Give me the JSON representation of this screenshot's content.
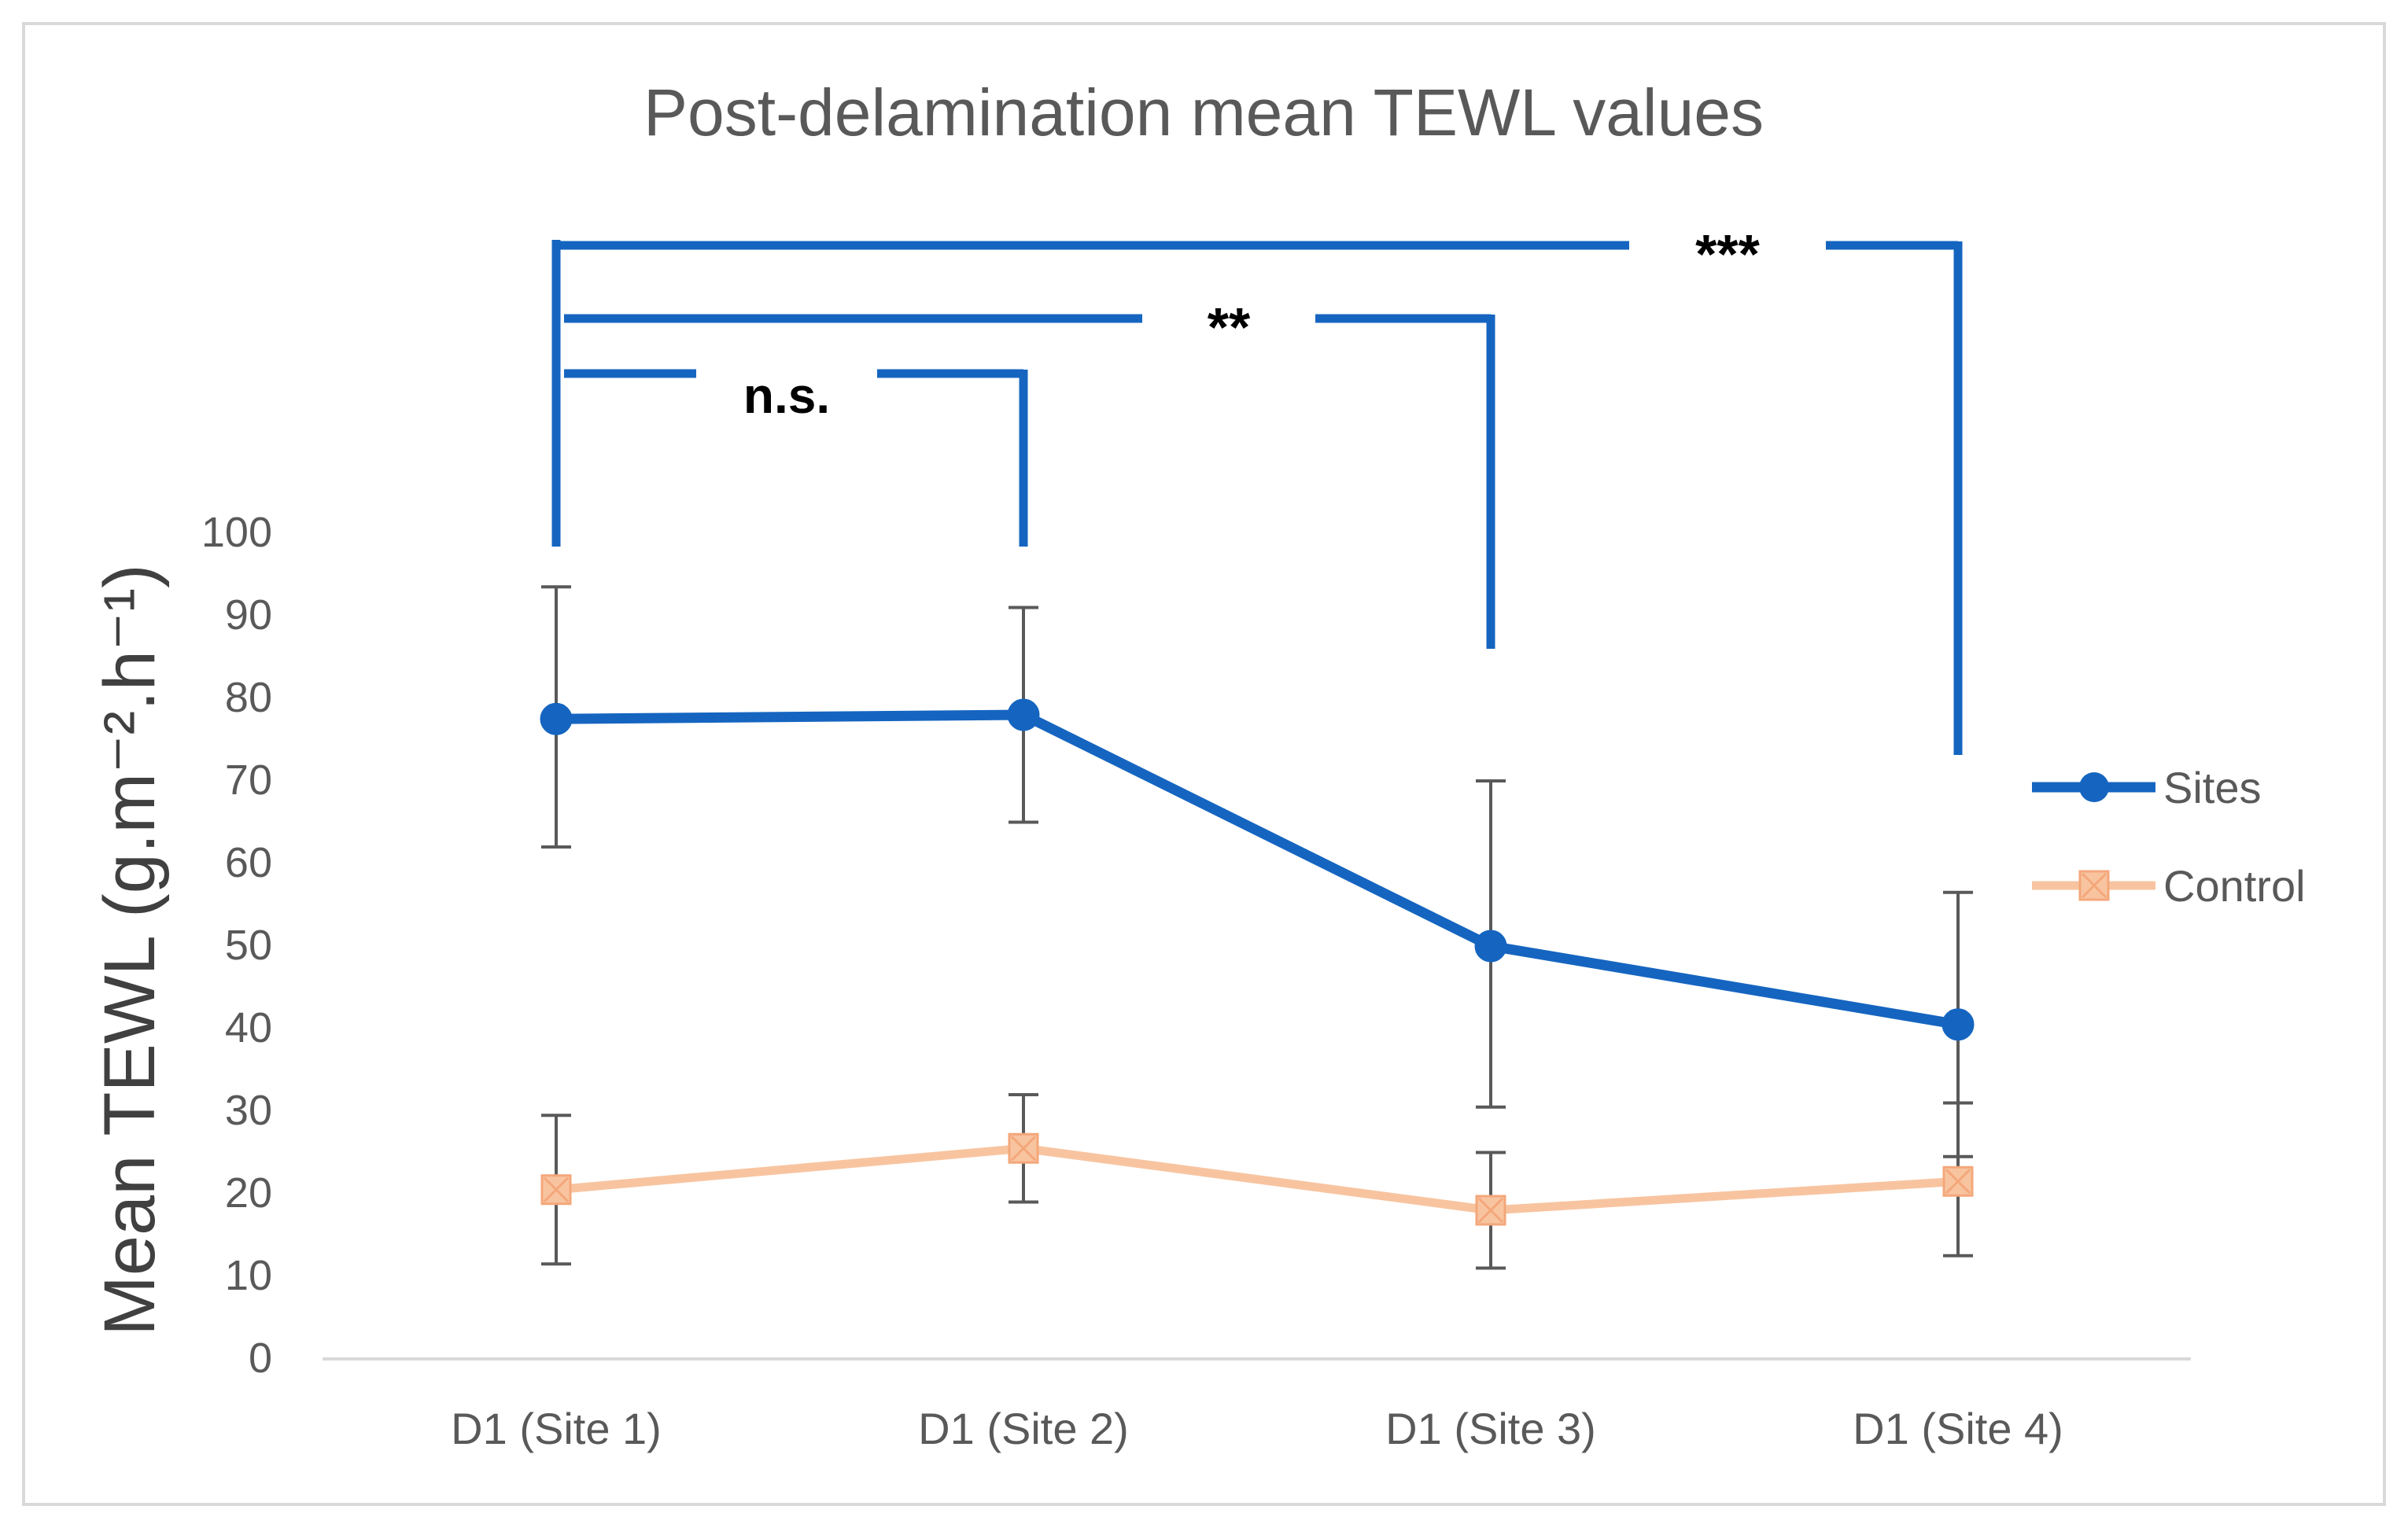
{
  "chart_data": {
    "type": "line",
    "title": "Post-delamination mean TEWL values",
    "xlabel": "",
    "ylabel": "Mean TEWL (g.m⁻².h⁻¹)",
    "ylim": [
      0,
      100
    ],
    "yticks": [
      0,
      10,
      20,
      30,
      40,
      50,
      60,
      70,
      80,
      90,
      100
    ],
    "categories": [
      "D1 (Site 1)",
      "D1 (Site 2)",
      "D1 (Site 3)",
      "D1 (Site 4)"
    ],
    "series": [
      {
        "name": "Sites",
        "color": "#1565C0",
        "marker": "circle",
        "values": [
          77.5,
          78,
          50,
          40.5
        ],
        "error_low": [
          62,
          65,
          30.5,
          24.5
        ],
        "error_high": [
          93.5,
          91,
          70,
          56.5
        ]
      },
      {
        "name": "Control",
        "color": "#F8C4A0",
        "marker": "square-x",
        "values": [
          20.5,
          25.5,
          18,
          21.5
        ],
        "error_low": [
          11.5,
          19,
          11,
          12.5
        ],
        "error_high": [
          29.5,
          32,
          25,
          31
        ]
      }
    ],
    "legend_position": "right",
    "significance": [
      {
        "from": "D1 (Site 1)",
        "to": "D1 (Site 2)",
        "label": "n.s."
      },
      {
        "from": "D1 (Site 1)",
        "to": "D1 (Site 3)",
        "label": "**"
      },
      {
        "from": "D1 (Site 1)",
        "to": "D1 (Site 4)",
        "label": "***"
      }
    ]
  }
}
